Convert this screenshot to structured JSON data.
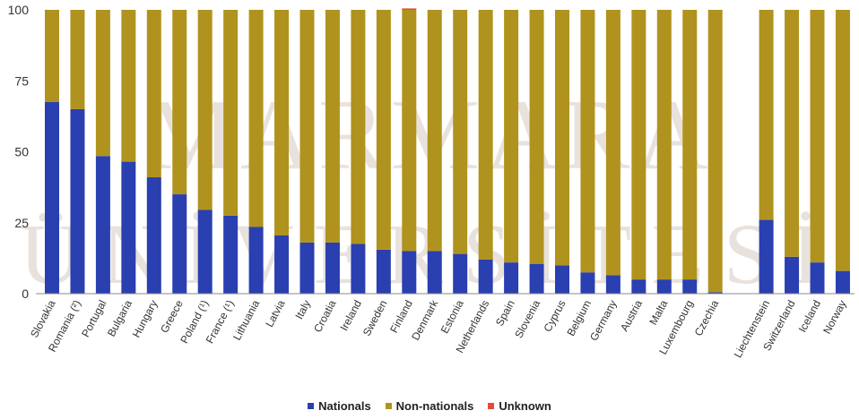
{
  "chart_data": {
    "type": "bar",
    "stacked": true,
    "ylim": [
      0,
      100
    ],
    "yticks": [
      0,
      25,
      50,
      75,
      100
    ],
    "grid": false,
    "legend_position": "bottom",
    "categories": [
      "Slovakia",
      "Romania (²)",
      "Portugal",
      "Bulgaria",
      "Hungary",
      "Greece",
      "Poland (¹)",
      "France (¹)",
      "Lithuania",
      "Latvia",
      "Italy",
      "Croatia",
      "Ireland",
      "Sweden",
      "Finland",
      "Denmark",
      "Estonia",
      "Netherlands",
      "Spain",
      "Slovenia",
      "Cyprus",
      "Belgium",
      "Germany",
      "Austria",
      "Malta",
      "Luxembourg",
      "Czechia",
      "",
      "Liechtenstein",
      "Switzerland",
      "Iceland",
      "Norway"
    ],
    "series": [
      {
        "name": "Nationals",
        "color": "#2a3fb0",
        "values": [
          67.5,
          65,
          48.5,
          46.5,
          41,
          35,
          29.5,
          27.5,
          23.5,
          20.5,
          18,
          18,
          17.5,
          15.5,
          15,
          15,
          14,
          12,
          11,
          10.5,
          10,
          7.5,
          6.5,
          5,
          5,
          5,
          0.5,
          null,
          26,
          13,
          11,
          8
        ]
      },
      {
        "name": "Non-nationals",
        "color": "#b0931e",
        "values": [
          32.5,
          35,
          51.5,
          53.5,
          59,
          65,
          70.5,
          72.5,
          76.5,
          79.5,
          82,
          82,
          82.5,
          84.5,
          85,
          85,
          86,
          88,
          89,
          89.5,
          90,
          92.5,
          93.5,
          95,
          95,
          95,
          99.5,
          null,
          74,
          87,
          89,
          92
        ]
      },
      {
        "name": "Unknown",
        "color": "#e8483c",
        "values": [
          0,
          0,
          0,
          0,
          0,
          0,
          0,
          0,
          0,
          0,
          0,
          0,
          0,
          0,
          0.5,
          0,
          0,
          0,
          0,
          0,
          0,
          0,
          0,
          0,
          0,
          0,
          0,
          null,
          0,
          0,
          0,
          0
        ]
      }
    ]
  },
  "watermark": {
    "line1": "MARMARA",
    "line2": "ÜNİVERSİTESİ"
  }
}
